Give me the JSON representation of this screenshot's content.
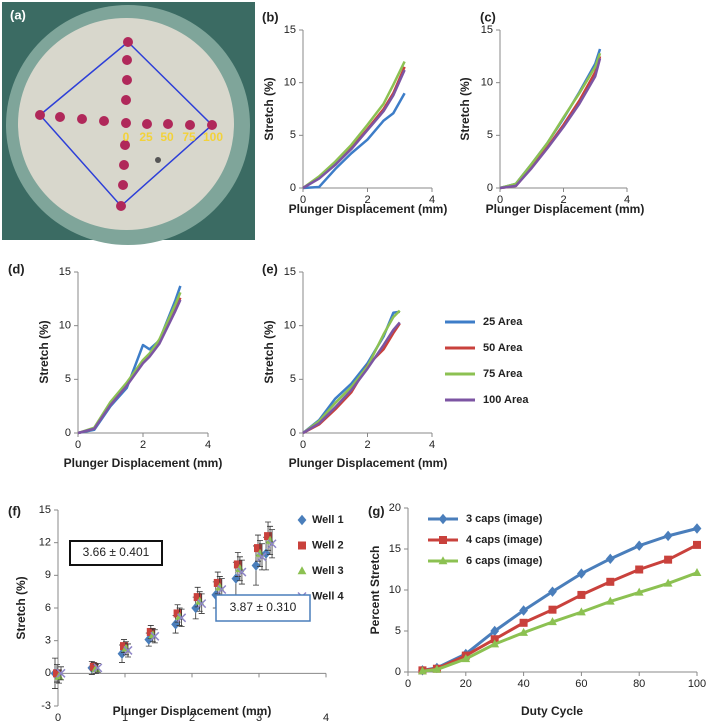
{
  "photo": {
    "label": "(a)",
    "marks": [
      "0",
      "25",
      "50",
      "75",
      "100"
    ]
  },
  "chart_data": [
    {
      "type": "line",
      "label": "(b)",
      "xlabel": "Plunger  Displacement (mm)",
      "ylabel": "Stretch (%)",
      "xlim": [
        0,
        4
      ],
      "ylim": [
        0,
        15
      ],
      "xticks": [
        0,
        2,
        4
      ],
      "yticks": [
        0,
        5,
        10,
        15
      ],
      "x": [
        0,
        0.5,
        1,
        1.5,
        2,
        2.5,
        2.8,
        3.15
      ],
      "series": [
        {
          "color": "#3d7dc8",
          "values": [
            0,
            0.1,
            1.8,
            3.3,
            4.6,
            6.4,
            7.1,
            9
          ]
        },
        {
          "color": "#c9413c",
          "values": [
            0,
            1,
            2.2,
            3.8,
            5.6,
            7.5,
            9,
            11.5
          ]
        },
        {
          "color": "#8cc152",
          "values": [
            0,
            1.1,
            2.5,
            4.1,
            6,
            8,
            9.8,
            12
          ]
        },
        {
          "color": "#7c55a3",
          "values": [
            0,
            0.9,
            2.2,
            3.7,
            5.5,
            7.3,
            8.8,
            11.2
          ]
        }
      ]
    },
    {
      "type": "line",
      "label": "(c)",
      "xlabel": "Plunger Displacement (mm)",
      "ylabel": "Stretch (%)",
      "xlim": [
        0,
        4
      ],
      "ylim": [
        0,
        15
      ],
      "xticks": [
        0,
        2,
        4
      ],
      "yticks": [
        0,
        5,
        10,
        15
      ],
      "x": [
        0,
        0.5,
        1,
        1.5,
        2,
        2.5,
        3,
        3.15
      ],
      "series": [
        {
          "color": "#3d7dc8",
          "values": [
            0,
            0.4,
            2.3,
            4.3,
            6.6,
            9.1,
            11.8,
            13.2
          ]
        },
        {
          "color": "#c9413c",
          "values": [
            0,
            0.2,
            2,
            3.9,
            6,
            8.3,
            11,
            12.5
          ]
        },
        {
          "color": "#8cc152",
          "values": [
            0,
            0.4,
            2.3,
            4.3,
            6.7,
            9,
            11.5,
            12.8
          ]
        },
        {
          "color": "#7c55a3",
          "values": [
            0,
            0.2,
            1.9,
            3.8,
            5.8,
            8,
            10.6,
            12.3
          ]
        }
      ]
    },
    {
      "type": "line",
      "label": "(d)",
      "xlabel": "Plunger Displacement (mm)",
      "ylabel": "Stretch (%)",
      "xlim": [
        0,
        4
      ],
      "ylim": [
        0,
        15
      ],
      "xticks": [
        0,
        2,
        4
      ],
      "yticks": [
        0,
        5,
        10,
        15
      ],
      "x": [
        0,
        0.5,
        1,
        1.5,
        2,
        2.2,
        2.5,
        3,
        3.15
      ],
      "series": [
        {
          "color": "#3d7dc8",
          "values": [
            0,
            0.3,
            2.5,
            4.2,
            8.2,
            7.8,
            8.6,
            12.4,
            13.7
          ]
        },
        {
          "color": "#c9413c",
          "values": [
            0,
            0.4,
            2.7,
            4.5,
            6.6,
            7.2,
            8.4,
            11.6,
            12.6
          ]
        },
        {
          "color": "#8cc152",
          "values": [
            0,
            0.5,
            2.9,
            4.7,
            6.8,
            7.4,
            8.7,
            12,
            13.1
          ]
        },
        {
          "color": "#7c55a3",
          "values": [
            0,
            0.4,
            2.6,
            4.4,
            6.5,
            7.1,
            8.3,
            11.4,
            12.4
          ]
        }
      ]
    },
    {
      "type": "line",
      "label": "(e)",
      "xlabel": "Plunger Displacement (mm)",
      "ylabel": "Stretch (%)",
      "xlim": [
        0,
        4
      ],
      "ylim": [
        0,
        15
      ],
      "xticks": [
        0,
        2,
        4
      ],
      "yticks": [
        0,
        5,
        10,
        15
      ],
      "x": [
        0,
        0.5,
        1,
        1.5,
        2,
        2.5,
        2.8,
        3
      ],
      "series": [
        {
          "name": "25 Area",
          "color": "#3d7dc8",
          "values": [
            0,
            1.2,
            3.2,
            4.6,
            6.5,
            9,
            11.2,
            11.3
          ]
        },
        {
          "name": "50 Area",
          "color": "#c9413c",
          "values": [
            0,
            0.8,
            2.2,
            3.8,
            6.3,
            7.8,
            9.3,
            10.2
          ]
        },
        {
          "name": "75 Area",
          "color": "#8cc152",
          "values": [
            0,
            1.1,
            2.8,
            4.3,
            6.2,
            9.2,
            10.8,
            11.4
          ]
        },
        {
          "name": "100 Area",
          "color": "#7c55a3",
          "values": [
            0,
            0.9,
            2.4,
            4,
            6,
            8.2,
            9.6,
            10.3
          ]
        }
      ],
      "legend": "right"
    },
    {
      "type": "scatter",
      "label": "(f)",
      "xlabel": "Plunger Displacement (mm)",
      "ylabel": "Stretch (%)",
      "xlim": [
        0,
        4
      ],
      "ylim": [
        -3,
        15
      ],
      "xticks": [
        0,
        1,
        2,
        3,
        4
      ],
      "yticks": [
        -3,
        0,
        3,
        6,
        9,
        12,
        15
      ],
      "x": [
        0,
        0.55,
        1,
        1.4,
        1.8,
        2.1,
        2.4,
        2.7,
        3,
        3.15
      ],
      "series": [
        {
          "name": "Well 1",
          "color": "#4a7ebb",
          "marker": "diamond",
          "values": [
            0,
            0.5,
            1.8,
            3.1,
            4.5,
            6,
            7.2,
            8.7,
            9.9,
            11
          ],
          "errors": [
            1.4,
            0.6,
            0.8,
            0.6,
            0.8,
            1,
            1.2,
            1.5,
            1.8,
            1.5
          ]
        },
        {
          "name": "Well 2",
          "color": "#c9413c",
          "marker": "square",
          "values": [
            0,
            0.6,
            2.5,
            3.8,
            5.5,
            7,
            8.3,
            10,
            11.5,
            12.6
          ],
          "errors": [
            0.8,
            0.4,
            0.6,
            0.6,
            0.8,
            0.9,
            1,
            1.1,
            1.2,
            1.3
          ]
        },
        {
          "name": "Well 3",
          "color": "#8cc152",
          "marker": "triangle",
          "values": [
            -0.3,
            0.4,
            2.3,
            3.5,
            5.2,
            6.6,
            7.9,
            9.6,
            11,
            12.2
          ],
          "errors": [
            0.6,
            0.4,
            0.6,
            0.6,
            0.8,
            0.9,
            1,
            1.1,
            1.2,
            1.3
          ]
        },
        {
          "name": "Well 4",
          "color": "#8f86c8",
          "marker": "x",
          "values": [
            0,
            0.5,
            2.1,
            3.4,
            5.1,
            6.4,
            7.7,
            9.3,
            10.7,
            11.9
          ],
          "errors": [
            0.6,
            0.4,
            0.6,
            0.6,
            0.8,
            0.9,
            1,
            1.1,
            1.2,
            1.3
          ]
        }
      ],
      "legend": "right",
      "annotations": [
        "3.66 ± 0.401",
        "3.87 ± 0.310"
      ]
    },
    {
      "type": "line",
      "label": "(g)",
      "xlabel": "Duty Cycle",
      "ylabel": "Percent Stretch",
      "xlim": [
        0,
        100
      ],
      "ylim": [
        0,
        20
      ],
      "xticks": [
        0,
        20,
        40,
        60,
        80,
        100
      ],
      "yticks": [
        0,
        5,
        10,
        15,
        20
      ],
      "x": [
        5,
        10,
        20,
        30,
        40,
        50,
        60,
        70,
        80,
        90,
        100
      ],
      "series": [
        {
          "name": "3 caps (image)",
          "color": "#4a7ebb",
          "marker": "diamond",
          "values": [
            0.2,
            0.5,
            2.2,
            5,
            7.5,
            9.8,
            12,
            13.8,
            15.4,
            16.6,
            17.5
          ]
        },
        {
          "name": "4 caps (image)",
          "color": "#c9413c",
          "marker": "square",
          "values": [
            0.2,
            0.4,
            2,
            4,
            6,
            7.6,
            9.4,
            11,
            12.5,
            13.7,
            15.5
          ]
        },
        {
          "name": "6 caps (image)",
          "color": "#8cc152",
          "marker": "triangle",
          "values": [
            0.1,
            0.3,
            1.6,
            3.4,
            4.8,
            6.1,
            7.3,
            8.6,
            9.7,
            10.8,
            12.1
          ]
        }
      ],
      "legend": "top-left"
    }
  ]
}
